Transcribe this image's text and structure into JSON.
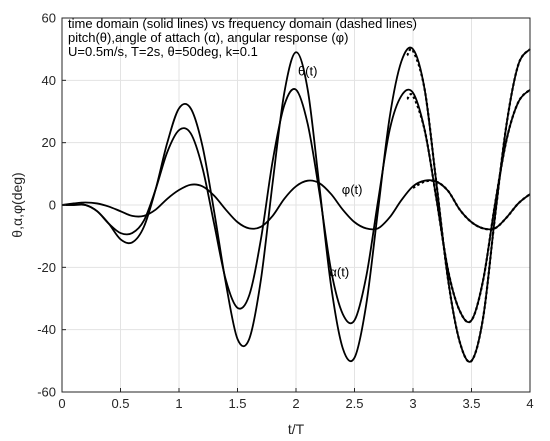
{
  "chart_data": {
    "type": "line",
    "header_lines": [
      "time domain (solid lines) vs frequency domain (dashed lines)",
      "pitch(θ),angle of attach (α), angular response (φ)",
      "U=0.5m/s, T=2s, θ=50deg, k=0.1"
    ],
    "xlabel": "t/T",
    "ylabel": "θ,α,φ(deg)",
    "xlim": [
      0,
      4
    ],
    "ylim": [
      -60,
      60
    ],
    "x_ticks": [
      0,
      0.5,
      1,
      1.5,
      2,
      2.5,
      3,
      3.5,
      4
    ],
    "x_tick_labels": [
      "0",
      "0.5",
      "1",
      "1.5",
      "2",
      "2.5",
      "3",
      "3.5",
      "4"
    ],
    "y_ticks": [
      -60,
      -40,
      -20,
      0,
      20,
      40,
      60
    ],
    "y_tick_labels": [
      "-60",
      "-40",
      "-20",
      "0",
      "20",
      "40",
      "60"
    ],
    "grid": true,
    "annotations": [
      {
        "text": "θ(t)",
        "x": 2.1,
        "y": 41.5
      },
      {
        "text": "φ(t)",
        "x": 2.48,
        "y": 3.5
      },
      {
        "text": "α(t)",
        "x": 2.37,
        "y": -23
      }
    ],
    "series": [
      {
        "key": "theta",
        "style": "solid",
        "x": [
          0,
          0.1,
          0.2,
          0.3,
          0.4,
          0.5,
          0.6,
          0.7,
          0.8,
          0.9,
          1.0,
          1.1,
          1.2,
          1.3,
          1.4,
          1.5,
          1.6,
          1.7,
          1.8,
          1.9,
          2.0,
          2.1,
          2.2,
          2.3,
          2.4,
          2.5,
          2.6,
          2.7,
          2.8,
          2.9,
          3.0,
          3.1,
          3.2,
          3.3,
          3.4,
          3.5,
          3.6,
          3.7,
          3.8,
          3.9,
          4.0
        ],
        "y": [
          0,
          0,
          0,
          -2,
          -6,
          -11,
          -12,
          -7,
          5,
          20,
          31,
          31,
          19,
          -2,
          -25,
          -43,
          -43,
          -24,
          7,
          36,
          49,
          37,
          6,
          -26,
          -46,
          -49,
          -32,
          -2,
          28,
          46,
          50,
          37,
          7,
          -24,
          -44,
          -50,
          -36,
          -4,
          26,
          45,
          50
        ]
      },
      {
        "key": "alpha",
        "style": "solid",
        "x": [
          0,
          0.1,
          0.2,
          0.3,
          0.4,
          0.5,
          0.6,
          0.7,
          0.8,
          0.9,
          1.0,
          1.1,
          1.2,
          1.3,
          1.4,
          1.5,
          1.6,
          1.7,
          1.8,
          1.9,
          2.0,
          2.1,
          2.2,
          2.3,
          2.4,
          2.5,
          2.6,
          2.7,
          2.8,
          2.9,
          3.0,
          3.1,
          3.2,
          3.3,
          3.4,
          3.5,
          3.6,
          3.7,
          3.8,
          3.9,
          4.0
        ],
        "y": [
          0,
          0,
          0,
          -2,
          -6,
          -9,
          -9,
          -5,
          5,
          17,
          24,
          23,
          12,
          -6,
          -24,
          -33,
          -29,
          -11,
          14,
          32,
          37,
          26,
          4,
          -21,
          -35,
          -37,
          -23,
          1,
          24,
          35,
          36,
          24,
          2,
          -21,
          -34,
          -37,
          -24,
          0,
          21,
          33,
          37
        ]
      },
      {
        "key": "phi",
        "style": "solid",
        "x": [
          0,
          0.1,
          0.2,
          0.3,
          0.4,
          0.5,
          0.6,
          0.7,
          0.8,
          0.9,
          1.0,
          1.1,
          1.2,
          1.3,
          1.4,
          1.5,
          1.6,
          1.7,
          1.8,
          1.9,
          2.0,
          2.1,
          2.2,
          2.3,
          2.4,
          2.5,
          2.6,
          2.7,
          2.8,
          2.9,
          3.0,
          3.1,
          3.2,
          3.3,
          3.4,
          3.5,
          3.6,
          3.7,
          3.8,
          3.9,
          4.0
        ],
        "y": [
          0,
          0.5,
          0.8,
          0.5,
          -0.5,
          -2,
          -3.5,
          -3.5,
          -1.5,
          2,
          4.8,
          6.5,
          6,
          3,
          -1.5,
          -5.5,
          -7.5,
          -7,
          -3.5,
          2,
          6,
          7.8,
          7,
          3.5,
          -1.5,
          -5.5,
          -7.5,
          -7.5,
          -4,
          1.5,
          6,
          7.8,
          7.5,
          4.5,
          -1.5,
          -5.5,
          -7.5,
          -7.5,
          -4,
          0.5,
          3.5
        ]
      },
      {
        "key": "theta_fd",
        "style": "dashed",
        "x": [
          2.95,
          3.0,
          3.1,
          3.2,
          3.3,
          3.4,
          3.5,
          3.6,
          3.7,
          3.8,
          3.9,
          4.0
        ],
        "y": [
          48,
          49.5,
          37,
          7,
          -24,
          -44,
          -50,
          -36,
          -4,
          26,
          45,
          50
        ]
      },
      {
        "key": "alpha_fd",
        "style": "dashed",
        "x": [
          2.95,
          3.0,
          3.1,
          3.2,
          3.3,
          3.4,
          3.5,
          3.6,
          3.7,
          3.8,
          3.9,
          4.0
        ],
        "y": [
          34,
          35,
          24,
          2,
          -21,
          -34,
          -37,
          -24,
          0,
          21,
          33,
          37
        ]
      },
      {
        "key": "phi_fd",
        "style": "dashed",
        "x": [
          3.0,
          3.1,
          3.2,
          3.3,
          3.4,
          3.5,
          3.6,
          3.7,
          3.8,
          3.9,
          4.0
        ],
        "y": [
          5.5,
          7.5,
          7.5,
          4.5,
          -1.5,
          -5.5,
          -7.5,
          -7.5,
          -4,
          0.5,
          3.5
        ]
      }
    ],
    "colors": {
      "line": "#000000",
      "grid": "#e3e3e3",
      "axis": "#262626",
      "background": "#ffffff"
    }
  }
}
